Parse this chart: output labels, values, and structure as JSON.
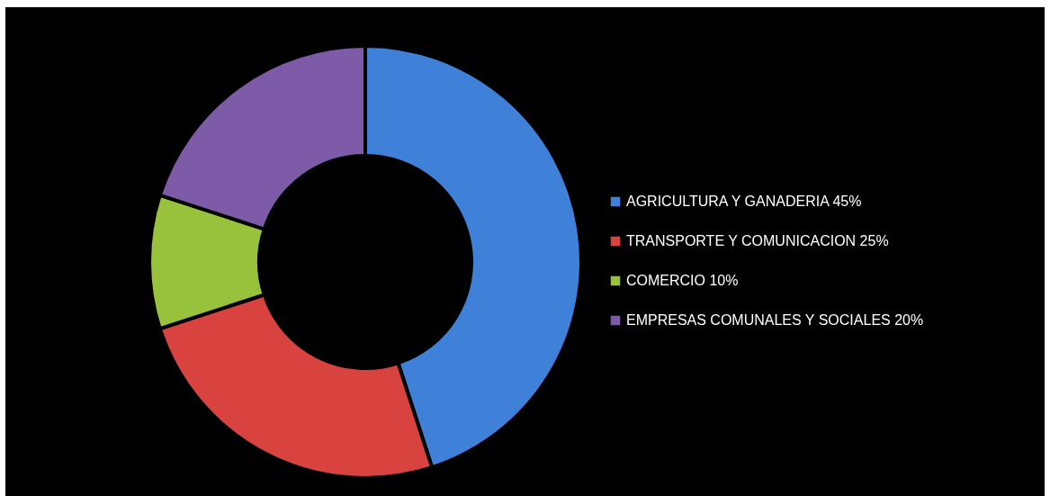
{
  "chart_data": {
    "type": "donut",
    "categories": [
      "AGRICULTURA Y GANADERIA 45%",
      "TRANSPORTE Y COMUNICACION 25%",
      "COMERCIO 10%",
      "EMPRESAS COMUNALES Y SOCIALES 20%"
    ],
    "values": [
      45,
      25,
      10,
      20
    ],
    "colors": [
      "#3f80d8",
      "#d8433f",
      "#98c23c",
      "#7e5ba9"
    ],
    "legend": "right"
  }
}
